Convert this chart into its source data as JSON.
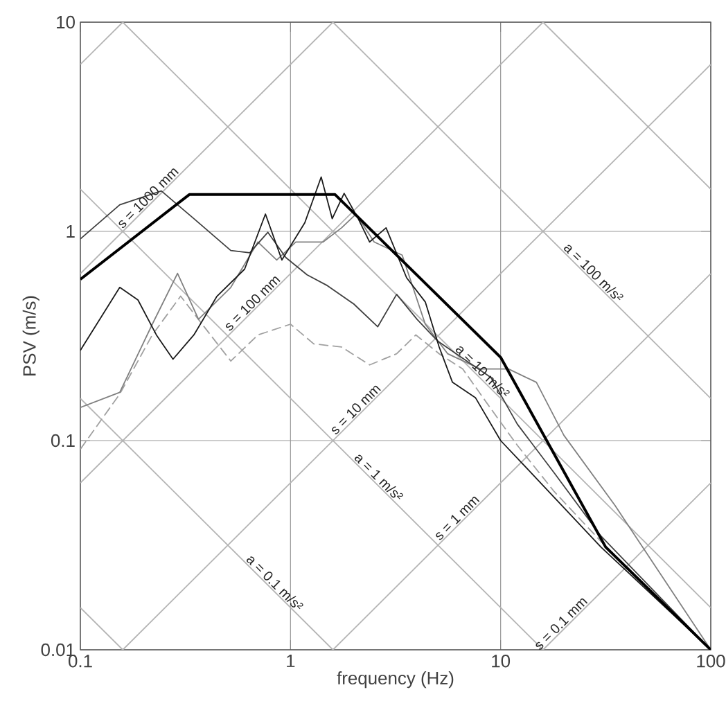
{
  "chart_data": {
    "type": "line",
    "xlabel": "frequency (Hz)",
    "ylabel": "PSV (m/s)",
    "log": "xy",
    "grid": true,
    "xlim": [
      0.1,
      100
    ],
    "ylim": [
      0.01,
      10
    ],
    "xticks": [
      0.1,
      1,
      10,
      100
    ],
    "yticks": [
      0.01,
      0.1,
      1,
      10
    ],
    "series": [
      {
        "color": "#000000",
        "x": [
          0.1,
          0.33,
          1.63,
          10,
          31.6,
          100
        ],
        "values": [
          0.59,
          1.5,
          1.5,
          0.25,
          0.031,
          0.01
        ]
      },
      {
        "color": "#1a1a1a",
        "x": [
          0.1,
          0.154,
          0.188,
          0.23,
          0.276,
          0.347,
          0.447,
          0.605,
          0.76,
          0.91,
          1.17,
          1.4,
          1.58,
          1.8,
          2.1,
          2.38,
          2.85,
          3.57,
          4.38,
          5.1,
          5.9,
          7.6,
          10,
          14,
          30,
          100
        ],
        "values": [
          0.27,
          0.54,
          0.47,
          0.32,
          0.245,
          0.32,
          0.49,
          0.66,
          1.21,
          0.73,
          1.1,
          1.82,
          1.15,
          1.52,
          1.15,
          0.89,
          1.04,
          0.6,
          0.46,
          0.28,
          0.19,
          0.16,
          0.1,
          0.07,
          0.031,
          0.01
        ]
      },
      {
        "color": "#404040",
        "x": [
          0.1,
          0.154,
          0.243,
          0.347,
          0.52,
          0.64,
          0.78,
          0.95,
          1.2,
          1.5,
          2.0,
          2.6,
          3.2,
          4.0,
          5.0,
          6.5,
          9.0,
          12,
          18,
          30,
          100
        ],
        "values": [
          0.92,
          1.34,
          1.56,
          1.15,
          0.81,
          0.79,
          0.99,
          0.75,
          0.62,
          0.55,
          0.45,
          0.35,
          0.5,
          0.38,
          0.3,
          0.25,
          0.2,
          0.12,
          0.07,
          0.035,
          0.01
        ]
      },
      {
        "color": "#808080",
        "x": [
          0.1,
          0.154,
          0.22,
          0.29,
          0.365,
          0.52,
          0.7,
          0.86,
          1.06,
          1.43,
          1.75,
          2.05,
          2.5,
          3.4,
          4.38,
          5.6,
          8.0,
          10.9,
          14.8,
          20,
          35,
          100
        ],
        "values": [
          0.144,
          0.17,
          0.36,
          0.63,
          0.38,
          0.54,
          0.89,
          0.73,
          0.89,
          0.89,
          1.04,
          1.21,
          0.89,
          0.77,
          0.36,
          0.26,
          0.22,
          0.22,
          0.19,
          0.106,
          0.049,
          0.01
        ]
      },
      {
        "color": "#a0a0a0",
        "line_style": "dashed",
        "x": [
          0.1,
          0.154,
          0.22,
          0.3,
          0.38,
          0.52,
          0.7,
          1.0,
          1.29,
          1.75,
          2.38,
          3.2,
          3.95,
          5.1,
          6.6,
          8.9,
          12,
          18,
          30,
          100
        ],
        "values": [
          0.091,
          0.167,
          0.32,
          0.49,
          0.36,
          0.24,
          0.32,
          0.36,
          0.29,
          0.28,
          0.23,
          0.26,
          0.32,
          0.26,
          0.22,
          0.144,
          0.095,
          0.057,
          0.033,
          0.01
        ]
      },
      {
        "color": "#b4b4b4",
        "x": [
          0.1,
          0.1592
        ],
        "values": [
          6.283,
          10
        ]
      },
      {
        "color": "#b4b4b4",
        "x": [
          0.1,
          1.592
        ],
        "values": [
          0.628,
          10
        ]
      },
      {
        "color": "#b4b4b4",
        "x": [
          0.1,
          15.92
        ],
        "values": [
          0.0628,
          10
        ]
      },
      {
        "color": "#b4b4b4",
        "x": [
          0.1592,
          100
        ],
        "values": [
          0.01,
          6.283
        ]
      },
      {
        "color": "#b4b4b4",
        "x": [
          1.592,
          100
        ],
        "values": [
          0.01,
          0.628
        ]
      },
      {
        "color": "#b4b4b4",
        "x": [
          15.92,
          100
        ],
        "values": [
          0.01,
          0.0628
        ]
      },
      {
        "color": "#b4b4b4",
        "x": [
          0.1,
          0.1592
        ],
        "values": [
          0.0159,
          0.01
        ]
      },
      {
        "color": "#b4b4b4",
        "x": [
          0.1,
          1.592
        ],
        "values": [
          0.159,
          0.01
        ]
      },
      {
        "color": "#b4b4b4",
        "x": [
          0.1,
          15.92
        ],
        "values": [
          1.592,
          0.01
        ]
      },
      {
        "color": "#b4b4b4",
        "x": [
          0.1592,
          100
        ],
        "values": [
          10,
          0.0159
        ]
      },
      {
        "color": "#b4b4b4",
        "x": [
          1.592,
          100
        ],
        "values": [
          10,
          0.159
        ]
      },
      {
        "color": "#b4b4b4",
        "x": [
          15.92,
          100
        ],
        "values": [
          10,
          1.592
        ]
      }
    ],
    "annotations": [
      {
        "text": "s = 1000 mm",
        "x": 0.22,
        "y": 1.382
      },
      {
        "text": "s = 100 mm",
        "x": 0.69,
        "y": 0.4335
      },
      {
        "text": "s = 10 mm",
        "x": 2.14,
        "y": 0.1345
      },
      {
        "text": "s = 1 mm",
        "x": 6.5,
        "y": 0.0408
      },
      {
        "text": "s = 0.1 mm",
        "x": 20.3,
        "y": 0.01275
      },
      {
        "text": "a = 100 m/s²",
        "x": 26.3,
        "y": 0.605
      },
      {
        "text": "a = 10 m/s²",
        "x": 7.8,
        "y": 0.204
      },
      {
        "text": "a = 1 m/s²",
        "x": 2.5,
        "y": 0.0637
      },
      {
        "text": "a = 0.1 m/s²",
        "x": 0.8,
        "y": 0.0199
      }
    ]
  }
}
